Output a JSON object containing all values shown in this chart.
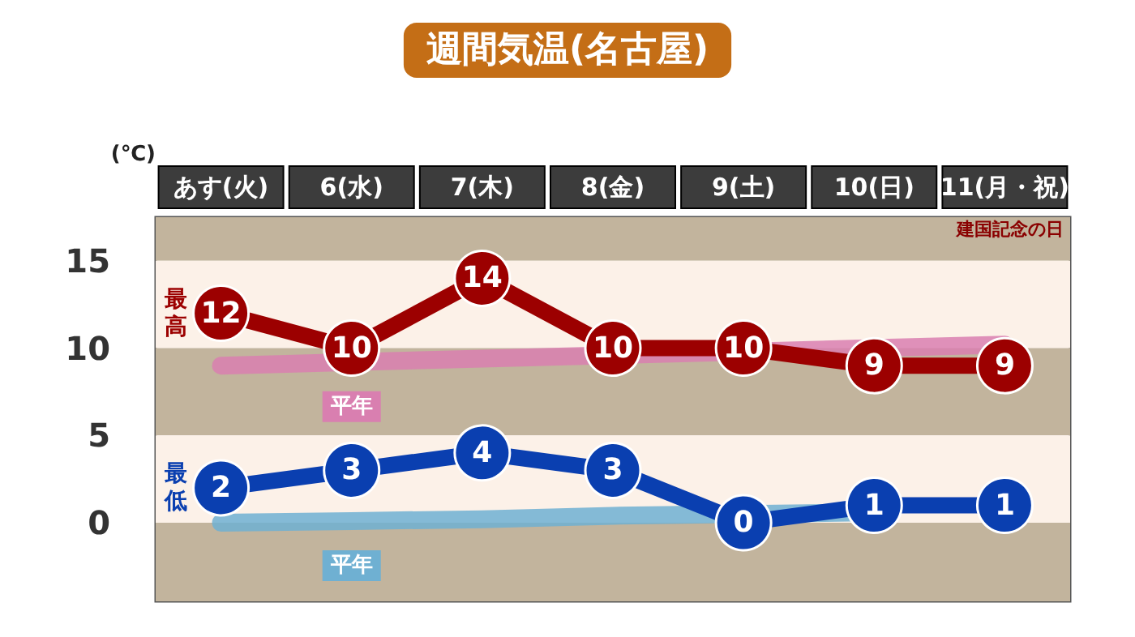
{
  "chart_data": {
    "type": "line",
    "title": "週間気温(名古屋)",
    "ylabel": "(℃)",
    "categories": [
      "あす(火)",
      "6(水)",
      "7(木)",
      "8(金)",
      "9(土)",
      "10(日)",
      "11(月・祝)"
    ],
    "series": [
      {
        "name": "平年",
        "color": "#d97fb0",
        "values": [
          9.0,
          9.2,
          9.4,
          9.6,
          9.8,
          10.0,
          10.2
        ]
      },
      {
        "name": "平年",
        "color": "#6fb0d2",
        "values": [
          0.0,
          0.1,
          0.2,
          0.4,
          0.5,
          0.6,
          null
        ]
      },
      {
        "name": "最高",
        "color": "#9c0000",
        "marker": "circle",
        "values": [
          12,
          10,
          14,
          10,
          10,
          9,
          9
        ],
        "value_labels": [
          "12",
          "10",
          "14",
          "10",
          "10",
          "9",
          "9"
        ]
      },
      {
        "name": "最低",
        "color": "#0a3fb0",
        "marker": "circle",
        "values": [
          2,
          3,
          4,
          3,
          0,
          1,
          1
        ],
        "value_labels": [
          "2",
          "3",
          "4",
          "3",
          "0",
          "1",
          "1"
        ]
      }
    ],
    "ylim": [
      -4.5,
      17.5
    ],
    "yticks": [
      0,
      5,
      10,
      15
    ],
    "grid": false,
    "legend": false,
    "bands": [
      {
        "axis": "y",
        "from": 15,
        "to": 17.5,
        "color": "#c2b49d"
      },
      {
        "axis": "y",
        "from": 10,
        "to": 15,
        "color": "#fcf1e8"
      },
      {
        "axis": "y",
        "from": 5,
        "to": 10,
        "color": "#c2b49d"
      },
      {
        "axis": "y",
        "from": 0,
        "to": 5,
        "color": "#fcf1e8"
      },
      {
        "axis": "y",
        "from": -4.5,
        "to": 0,
        "color": "#c2b49d"
      }
    ],
    "annotations": [
      "建国記念の日"
    ]
  }
}
